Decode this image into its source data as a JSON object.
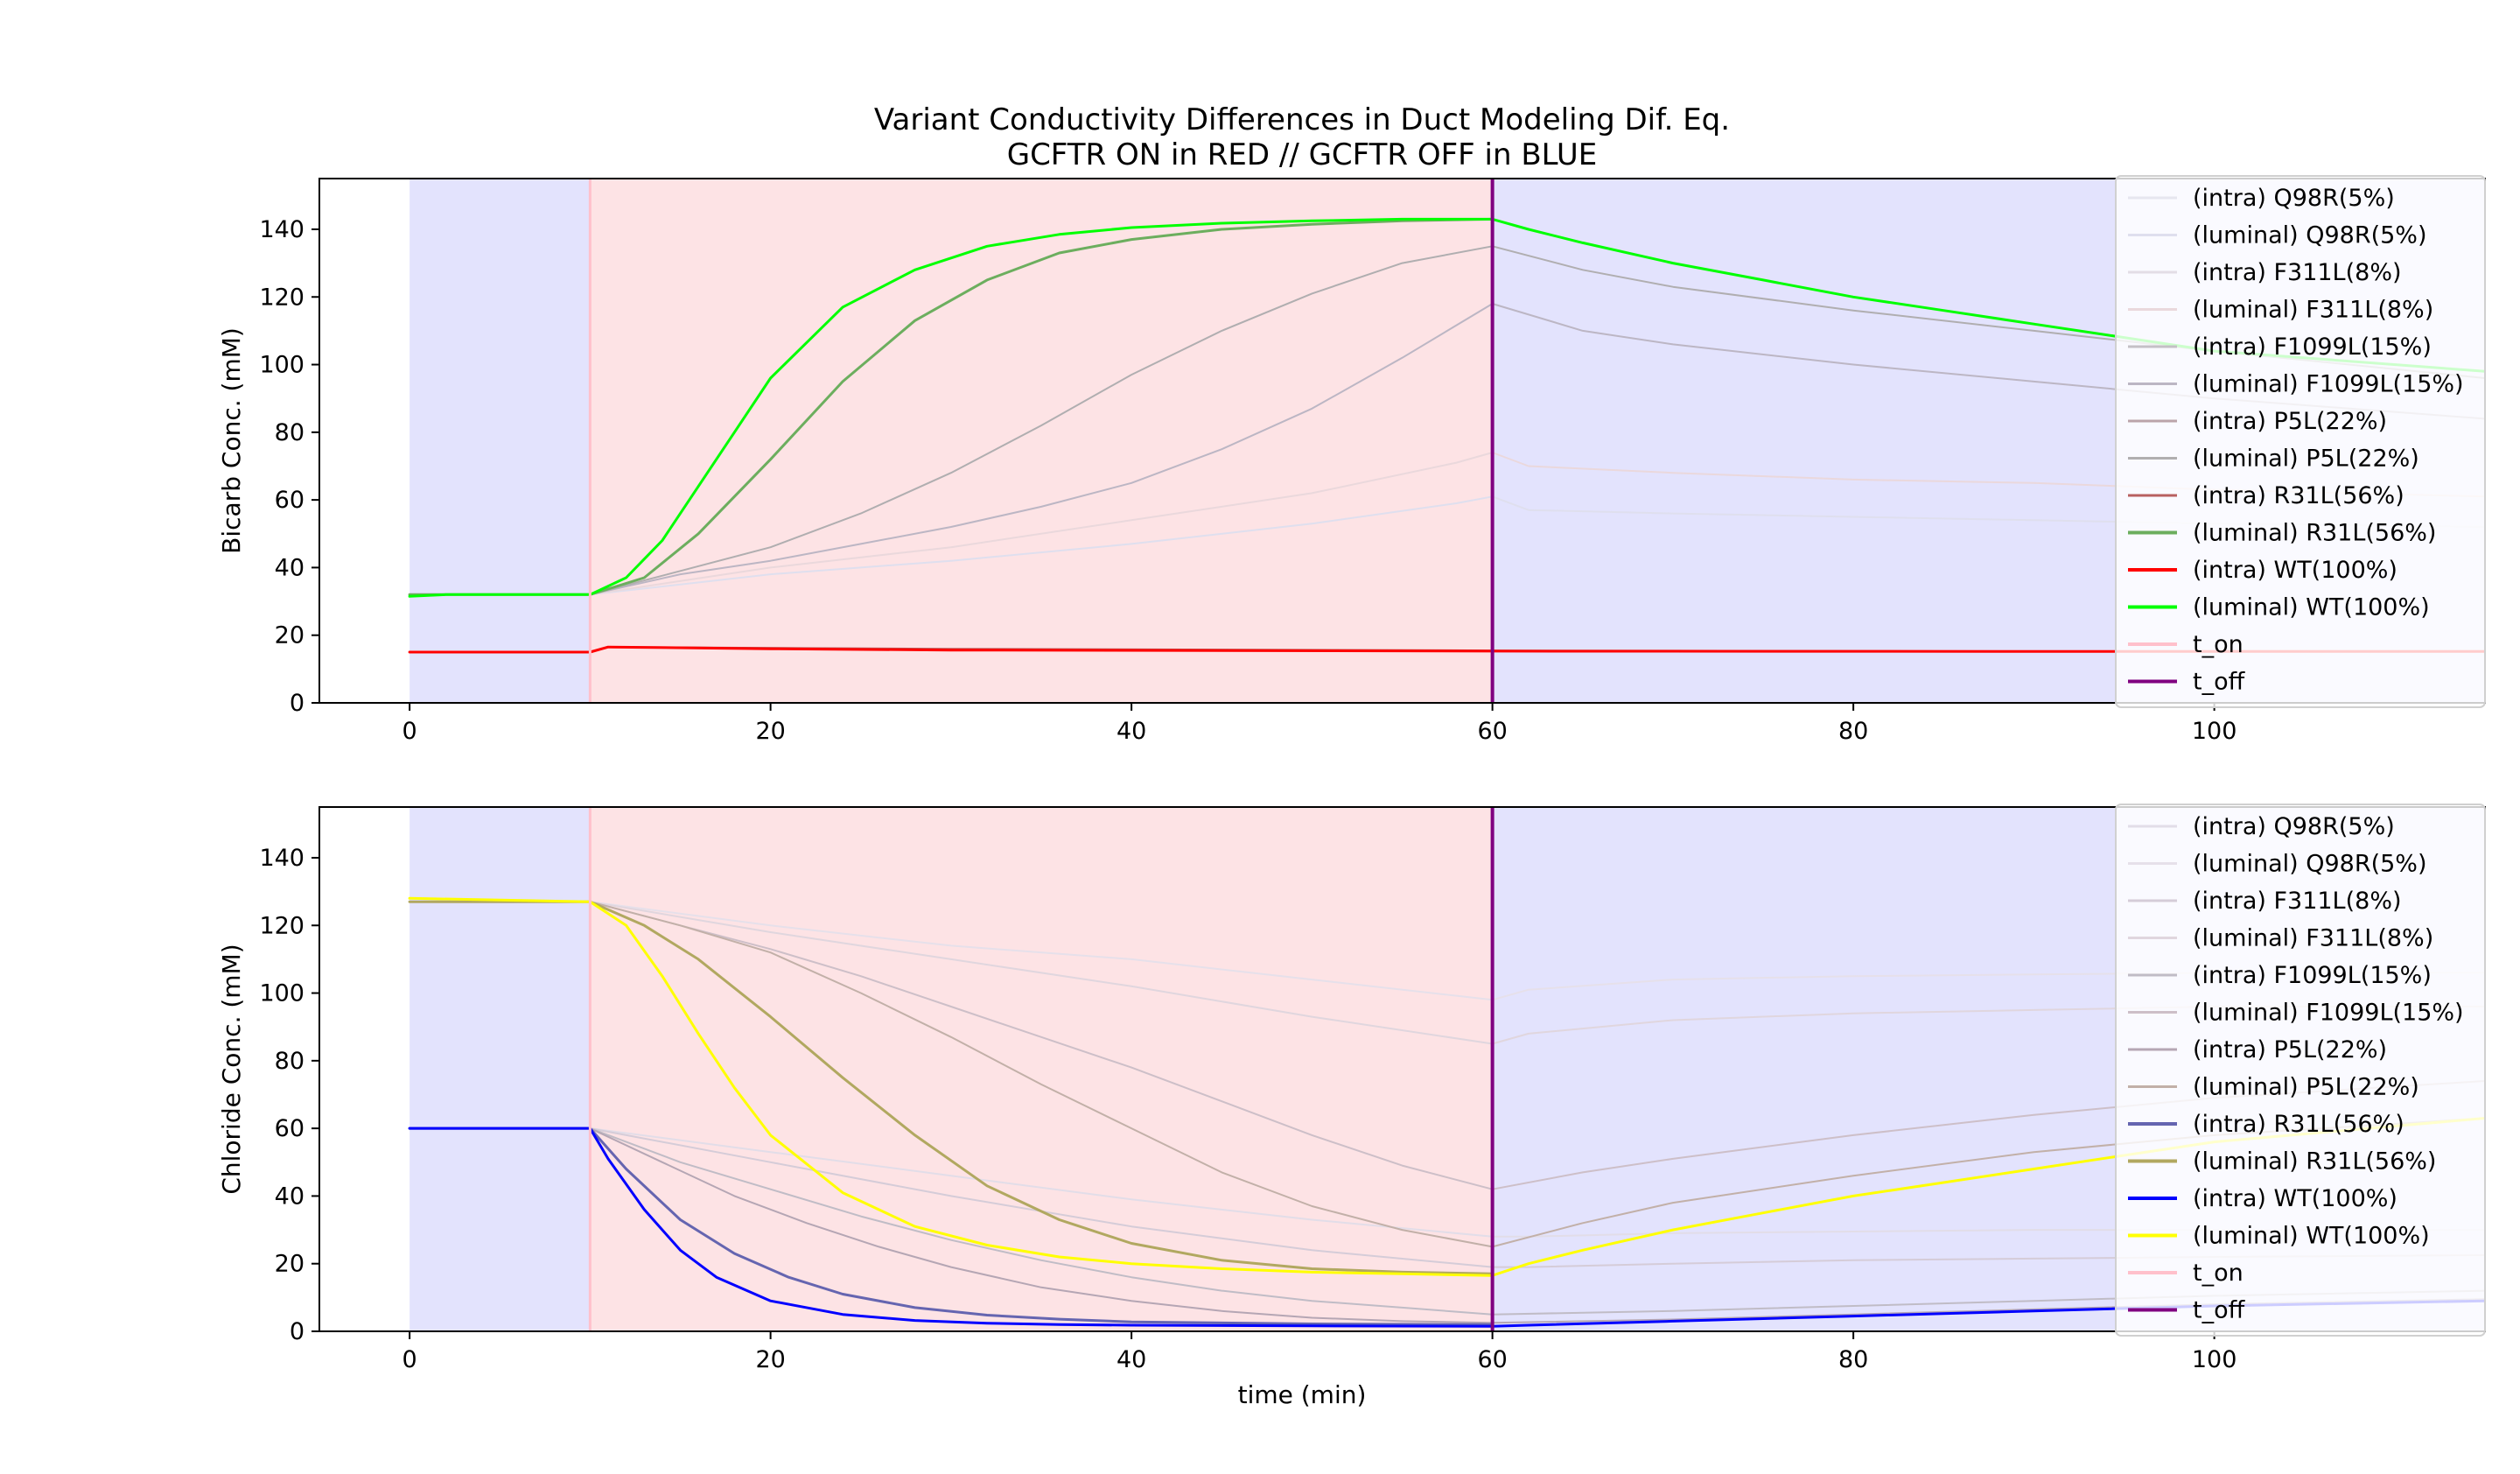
{
  "chart_data": [
    {
      "type": "line",
      "title": "Variant Conductivity Differences in Duct Modeling Dif. Eq.",
      "subtitle": "GCFTR ON in RED // GCFTR OFF in BLUE",
      "xlabel": "",
      "ylabel": "Bicarb Conc. (mM)",
      "xlim": [
        -5,
        115
      ],
      "ylim": [
        0,
        155
      ],
      "xticks": [
        "0",
        "20",
        "40",
        "60",
        "80",
        "100"
      ],
      "yticks": [
        "0",
        "20",
        "40",
        "60",
        "80",
        "100",
        "120",
        "140"
      ],
      "grid": false,
      "legend_position": "right",
      "shaded_regions": [
        {
          "x_start": 0,
          "x_end": 10,
          "color": "#e3e3fd"
        },
        {
          "x_start": 10,
          "x_end": 60,
          "color": "#fde3e5"
        },
        {
          "x_start": 60,
          "x_end": 115,
          "color": "#e3e3fd"
        }
      ],
      "vlines": [
        {
          "name": "t_on",
          "x": 10,
          "color": "#ffc0cb"
        },
        {
          "name": "t_off",
          "x": 60,
          "color": "#800080"
        }
      ],
      "series": [
        {
          "name": "(intra) Q98R(5%)",
          "color": "#e6e6ef",
          "width": 2,
          "x": [
            0,
            10,
            11,
            30,
            60,
            95,
            115
          ],
          "y": [
            15,
            15,
            16.5,
            15.6,
            15.3,
            15.2,
            15.2
          ]
        },
        {
          "name": "(luminal) Q98R(5%)",
          "color": "#dfdfee",
          "width": 2,
          "x": [
            0,
            10,
            20,
            30,
            40,
            50,
            58,
            60,
            62,
            70,
            80,
            90,
            100,
            115
          ],
          "y": [
            32,
            32,
            38,
            42,
            47,
            53,
            59,
            61,
            57,
            56,
            55,
            54,
            53,
            52
          ]
        },
        {
          "name": "(intra) F311L(8%)",
          "color": "#e3dde6",
          "width": 2,
          "x": [
            0,
            10,
            11,
            30,
            60,
            95,
            115
          ],
          "y": [
            15,
            15,
            16.5,
            15.6,
            15.3,
            15.2,
            15.2
          ]
        },
        {
          "name": "(luminal) F311L(8%)",
          "color": "#ead8dc",
          "width": 2,
          "x": [
            0,
            10,
            20,
            30,
            40,
            50,
            58,
            60,
            62,
            70,
            80,
            90,
            100,
            115
          ],
          "y": [
            32,
            32,
            40,
            46,
            54,
            62,
            71,
            74,
            70,
            68,
            66,
            65,
            63,
            61
          ]
        },
        {
          "name": "(intra) F1099L(15%)",
          "color": "#c4c0c6",
          "width": 2,
          "x": [
            0,
            10,
            11,
            30,
            60,
            95,
            115
          ],
          "y": [
            15,
            15,
            16.5,
            15.8,
            15.4,
            15.2,
            15.2
          ]
        },
        {
          "name": "(luminal) F1099L(15%)",
          "color": "#bcb6c4",
          "width": 2,
          "x": [
            0,
            10,
            15,
            20,
            25,
            30,
            35,
            40,
            45,
            50,
            55,
            60,
            65,
            70,
            80,
            90,
            100,
            115
          ],
          "y": [
            32,
            32,
            38,
            42,
            47,
            52,
            58,
            65,
            75,
            87,
            102,
            118,
            110,
            106,
            100,
            95,
            90,
            84
          ]
        },
        {
          "name": "(intra) P5L(22%)",
          "color": "#bba4aa",
          "width": 2,
          "x": [
            0,
            10,
            11,
            30,
            60,
            95,
            115
          ],
          "y": [
            15,
            15,
            16.5,
            15.9,
            15.4,
            15.2,
            15.2
          ]
        },
        {
          "name": "(luminal) P5L(22%)",
          "color": "#b0aeb0",
          "width": 2,
          "x": [
            0,
            10,
            15,
            20,
            25,
            30,
            35,
            40,
            45,
            50,
            55,
            60,
            65,
            70,
            80,
            90,
            100,
            115
          ],
          "y": [
            32,
            32,
            39,
            46,
            56,
            68,
            82,
            97,
            110,
            121,
            130,
            135,
            128,
            123,
            116,
            110,
            104,
            96
          ]
        },
        {
          "name": "(intra) R31L(56%)",
          "color": "#b86060",
          "width": 2,
          "x": [
            0,
            10,
            11,
            30,
            60,
            95,
            115
          ],
          "y": [
            15,
            15,
            16.5,
            16.0,
            15.5,
            15.2,
            15.2
          ]
        },
        {
          "name": "(luminal) R31L(56%)",
          "color": "#6cae5e",
          "width": 3,
          "x": [
            0,
            10,
            13,
            16,
            20,
            24,
            28,
            32,
            36,
            40,
            45,
            50,
            55,
            60
          ],
          "y": [
            32,
            32,
            37,
            50,
            72,
            95,
            113,
            125,
            133,
            137,
            140,
            141.5,
            142.5,
            143
          ]
        },
        {
          "name": "(intra) WT(100%)",
          "color": "#ff0000",
          "width": 3,
          "x": [
            0,
            10,
            11,
            20,
            30,
            60,
            95,
            115
          ],
          "y": [
            15,
            15,
            16.5,
            16,
            15.6,
            15.3,
            15.2,
            15.2
          ]
        },
        {
          "name": "(luminal) WT(100%)",
          "color": "#00ff00",
          "width": 3,
          "x": [
            0,
            2,
            10,
            12,
            14,
            16,
            18,
            20,
            24,
            28,
            32,
            36,
            40,
            45,
            50,
            55,
            60,
            62,
            65,
            70,
            75,
            80,
            85,
            90,
            95,
            100,
            115
          ],
          "y": [
            31.5,
            32,
            32,
            37,
            48,
            64,
            80,
            96,
            117,
            128,
            135,
            138.5,
            140.5,
            141.8,
            142.5,
            143,
            143,
            140,
            136,
            130,
            125,
            120,
            116,
            112,
            108,
            104,
            98
          ]
        }
      ],
      "legend_entries": [
        "(intra) Q98R(5%)",
        "(luminal) Q98R(5%)",
        "(intra) F311L(8%)",
        "(luminal) F311L(8%)",
        "(intra) F1099L(15%)",
        "(luminal) F1099L(15%)",
        "(intra) P5L(22%)",
        "(luminal) P5L(22%)",
        "(intra) R31L(56%)",
        "(luminal) R31L(56%)",
        "(intra) WT(100%)",
        "(luminal) WT(100%)",
        "t_on",
        "t_off"
      ]
    },
    {
      "type": "line",
      "title": "",
      "xlabel": "time (min)",
      "ylabel": "Chloride Conc. (mM)",
      "xlim": [
        -5,
        115
      ],
      "ylim": [
        0,
        155
      ],
      "xticks": [
        "0",
        "20",
        "40",
        "60",
        "80",
        "100"
      ],
      "yticks": [
        "0",
        "20",
        "40",
        "60",
        "80",
        "100",
        "120",
        "140"
      ],
      "grid": false,
      "legend_position": "right",
      "shaded_regions": [
        {
          "x_start": 0,
          "x_end": 10,
          "color": "#e3e3fd"
        },
        {
          "x_start": 10,
          "x_end": 60,
          "color": "#fde3e5"
        },
        {
          "x_start": 60,
          "x_end": 115,
          "color": "#e3e3fd"
        }
      ],
      "vlines": [
        {
          "name": "t_on",
          "x": 10,
          "color": "#ffc0cb"
        },
        {
          "name": "t_off",
          "x": 60,
          "color": "#800080"
        }
      ],
      "series": [
        {
          "name": "(intra) Q98R(5%)",
          "color": "#e2dde8",
          "width": 2,
          "x": [
            0,
            10,
            20,
            30,
            40,
            50,
            60,
            62,
            70,
            80,
            90,
            100,
            115
          ],
          "y": [
            60,
            60,
            53,
            46,
            39,
            33,
            28,
            28,
            29,
            29.5,
            30,
            30,
            30
          ]
        },
        {
          "name": "(luminal) Q98R(5%)",
          "color": "#e6e0ea",
          "width": 2,
          "x": [
            0,
            10,
            20,
            30,
            40,
            50,
            60,
            62,
            70,
            80,
            90,
            100,
            115
          ],
          "y": [
            127,
            127,
            120,
            114,
            110,
            104,
            98,
            101,
            104,
            105,
            105.5,
            106,
            106
          ]
        },
        {
          "name": "(intra) F311L(8%)",
          "color": "#d5ccd8",
          "width": 2,
          "x": [
            0,
            10,
            20,
            30,
            40,
            50,
            60,
            62,
            70,
            80,
            90,
            100,
            115
          ],
          "y": [
            60,
            60,
            50,
            40,
            31,
            24,
            19,
            19,
            20,
            21,
            21.5,
            22,
            22.5
          ]
        },
        {
          "name": "(luminal) F311L(8%)",
          "color": "#e0d6de",
          "width": 2,
          "x": [
            0,
            10,
            20,
            30,
            40,
            50,
            60,
            62,
            70,
            80,
            90,
            100,
            115
          ],
          "y": [
            127,
            127,
            118,
            110,
            102,
            93,
            85,
            88,
            92,
            94,
            95,
            96,
            96
          ]
        },
        {
          "name": "(intra) F1099L(15%)",
          "color": "#c0bcc6",
          "width": 2,
          "x": [
            0,
            10,
            15,
            20,
            25,
            30,
            35,
            40,
            45,
            50,
            55,
            60,
            70,
            80,
            90,
            100,
            115
          ],
          "y": [
            60,
            60,
            50,
            42,
            34,
            27,
            21,
            16,
            12,
            9,
            7,
            5,
            6,
            7.5,
            9,
            10.5,
            12
          ]
        },
        {
          "name": "(luminal) F1099L(15%)",
          "color": "#cdbfc8",
          "width": 2,
          "x": [
            0,
            10,
            15,
            20,
            25,
            30,
            35,
            40,
            45,
            50,
            55,
            60,
            65,
            70,
            80,
            90,
            100,
            115
          ],
          "y": [
            127,
            127,
            120,
            113,
            105,
            96,
            87,
            78,
            68,
            58,
            49,
            42,
            47,
            51,
            58,
            64,
            69,
            74
          ]
        },
        {
          "name": "(intra) P5L(22%)",
          "color": "#b5a6b4",
          "width": 2,
          "x": [
            0,
            10,
            14,
            18,
            22,
            26,
            30,
            35,
            40,
            45,
            50,
            55,
            60,
            70,
            80,
            90,
            100,
            115
          ],
          "y": [
            60,
            60,
            50,
            40,
            32,
            25,
            19,
            13,
            9,
            6,
            4,
            3,
            2.5,
            3.5,
            5,
            6.5,
            8,
            9.5
          ]
        },
        {
          "name": "(luminal) P5L(22%)",
          "color": "#c2b0a8",
          "width": 2,
          "x": [
            0,
            10,
            15,
            20,
            25,
            30,
            35,
            40,
            45,
            50,
            55,
            60,
            65,
            70,
            80,
            90,
            100,
            115
          ],
          "y": [
            127,
            127,
            120,
            112,
            100,
            87,
            73,
            60,
            47,
            37,
            30,
            25,
            32,
            38,
            46,
            53,
            58,
            63
          ]
        },
        {
          "name": "(intra) R31L(56%)",
          "color": "#6565b0",
          "width": 3,
          "x": [
            0,
            10,
            12,
            15,
            18,
            21,
            24,
            28,
            32,
            36,
            40,
            50,
            60
          ],
          "y": [
            60,
            60,
            48,
            33,
            23,
            16,
            11,
            7,
            4.8,
            3.6,
            2.8,
            2.2,
            2
          ]
        },
        {
          "name": "(luminal) R31L(56%)",
          "color": "#b1a860",
          "width": 3,
          "x": [
            0,
            10,
            13,
            16,
            20,
            24,
            28,
            32,
            36,
            40,
            45,
            50,
            55,
            60
          ],
          "y": [
            127,
            127,
            120,
            110,
            93,
            75,
            58,
            43,
            33,
            26,
            21,
            18.5,
            17.5,
            17
          ]
        },
        {
          "name": "(intra) WT(100%)",
          "color": "#0000ff",
          "width": 3,
          "x": [
            0,
            10,
            11,
            13,
            15,
            17,
            20,
            24,
            28,
            32,
            36,
            40,
            50,
            60,
            62,
            70,
            80,
            90,
            100,
            115
          ],
          "y": [
            60,
            60,
            51,
            36,
            24,
            16,
            9,
            5,
            3.2,
            2.4,
            2,
            1.8,
            1.6,
            1.5,
            1.8,
            3,
            4.5,
            6,
            7.5,
            9
          ]
        },
        {
          "name": "(luminal) WT(100%)",
          "color": "#ffff00",
          "width": 3,
          "x": [
            0,
            10,
            12,
            14,
            16,
            18,
            20,
            24,
            28,
            32,
            36,
            40,
            45,
            50,
            55,
            60,
            62,
            65,
            70,
            75,
            80,
            85,
            90,
            95,
            100,
            115
          ],
          "y": [
            128,
            127,
            120,
            105,
            88,
            72,
            58,
            41,
            31,
            25.5,
            22,
            20,
            18.5,
            17.5,
            17,
            16.5,
            20,
            24,
            30,
            35,
            40,
            44,
            48,
            52,
            56,
            63
          ]
        }
      ],
      "legend_entries": [
        "(intra) Q98R(5%)",
        "(luminal) Q98R(5%)",
        "(intra) F311L(8%)",
        "(luminal) F311L(8%)",
        "(intra) F1099L(15%)",
        "(luminal) F1099L(15%)",
        "(intra) P5L(22%)",
        "(luminal) P5L(22%)",
        "(intra) R31L(56%)",
        "(luminal) R31L(56%)",
        "(intra) WT(100%)",
        "(luminal) WT(100%)",
        "t_on",
        "t_off"
      ]
    }
  ]
}
